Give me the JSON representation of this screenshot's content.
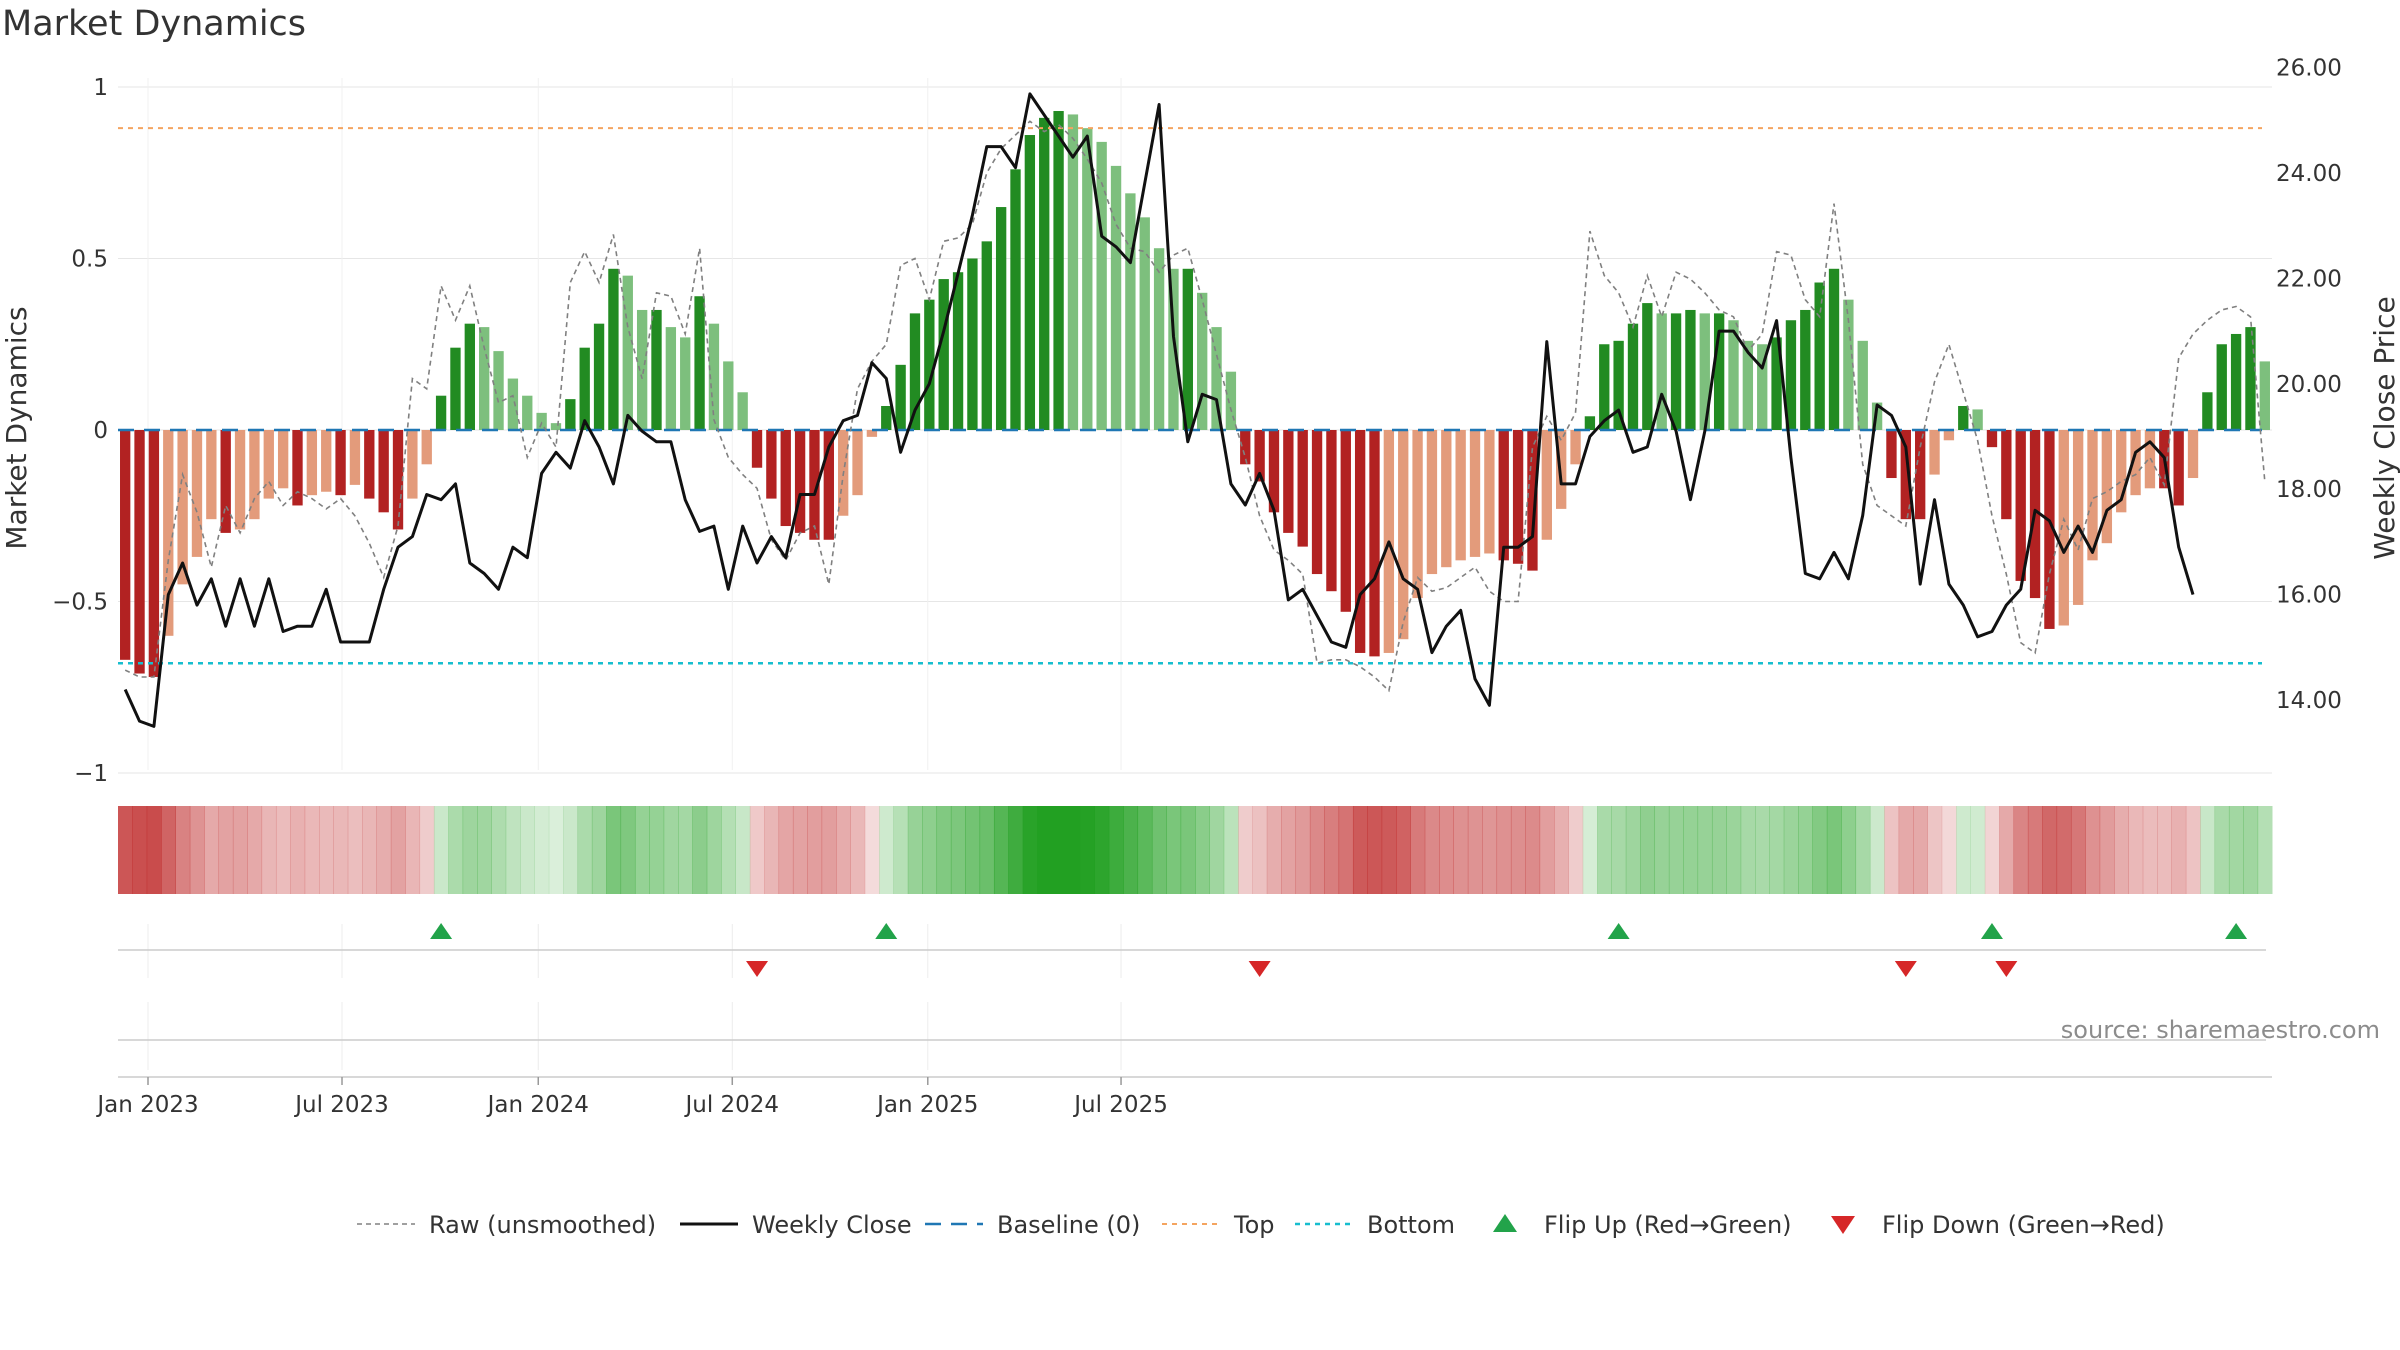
{
  "chart_data": {
    "type": "bar",
    "title": "Market Dynamics",
    "ylabel": "Market Dynamics",
    "y2label": "Weekly Close Price",
    "ylim": [
      -1,
      1
    ],
    "y2lim": [
      12.6,
      26.4
    ],
    "y_ticks": [
      1,
      0.5,
      0,
      -0.5,
      -1
    ],
    "y_tick_labels": [
      "1",
      "0.5",
      "0",
      "−0.5",
      "−1"
    ],
    "y2_ticks": [
      26,
      24,
      22,
      20,
      18,
      16,
      14
    ],
    "y2_tick_labels": [
      "26.00",
      "24.00",
      "22.00",
      "20.00",
      "18.00",
      "16.00",
      "14.00"
    ],
    "x_ticks": [
      {
        "label": "Jan 2023",
        "week": 0
      },
      {
        "label": "Jul 2023",
        "week": 26
      },
      {
        "label": "Jan 2024",
        "week": 52.3
      },
      {
        "label": "Jul 2024",
        "week": 78.3
      },
      {
        "label": "Jan 2025",
        "week": 104.5
      },
      {
        "label": "Jul 2025",
        "week": 130.4
      }
    ],
    "start_label": "Jan 2023",
    "bar_step_weeks": 0.72,
    "levels": {
      "top": 0.88,
      "bottom": -0.68,
      "baseline": 0
    },
    "grid": true,
    "legend_position": "bottom",
    "series": [
      {
        "name": "Market Dynamics",
        "kind": "bar",
        "values": [
          -0.67,
          -0.71,
          -0.72,
          -0.6,
          -0.45,
          -0.37,
          -0.26,
          -0.3,
          -0.29,
          -0.26,
          -0.2,
          -0.17,
          -0.22,
          -0.19,
          -0.18,
          -0.19,
          -0.16,
          -0.2,
          -0.24,
          -0.29,
          -0.2,
          -0.1,
          0.1,
          0.24,
          0.31,
          0.3,
          0.23,
          0.15,
          0.1,
          0.05,
          0.02,
          0.09,
          0.24,
          0.31,
          0.47,
          0.45,
          0.35,
          0.35,
          0.3,
          0.27,
          0.39,
          0.31,
          0.2,
          0.11,
          -0.11,
          -0.2,
          -0.28,
          -0.3,
          -0.32,
          -0.32,
          -0.25,
          -0.19,
          -0.02,
          0.07,
          0.19,
          0.34,
          0.38,
          0.44,
          0.46,
          0.5,
          0.55,
          0.65,
          0.76,
          0.86,
          0.91,
          0.93,
          0.92,
          0.88,
          0.84,
          0.77,
          0.69,
          0.62,
          0.53,
          0.47,
          0.47,
          0.4,
          0.3,
          0.17,
          -0.1,
          -0.15,
          -0.24,
          -0.3,
          -0.34,
          -0.42,
          -0.47,
          -0.53,
          -0.65,
          -0.66,
          -0.65,
          -0.61,
          -0.49,
          -0.42,
          -0.4,
          -0.38,
          -0.37,
          -0.36,
          -0.38,
          -0.39,
          -0.41,
          -0.32,
          -0.23,
          -0.1,
          0.04,
          0.25,
          0.26,
          0.31,
          0.37,
          0.34,
          0.34,
          0.35,
          0.34,
          0.34,
          0.32,
          0.26,
          0.25,
          0.27,
          0.32,
          0.35,
          0.43,
          0.47,
          0.38,
          0.26,
          0.08,
          -0.14,
          -0.26,
          -0.26,
          -0.13,
          -0.03,
          0.07,
          0.06,
          -0.05,
          -0.26,
          -0.44,
          -0.49,
          -0.58,
          -0.57,
          -0.51,
          -0.38,
          -0.33,
          -0.24,
          -0.19,
          -0.17,
          -0.17,
          -0.22,
          -0.14,
          0.11,
          0.25,
          0.28,
          0.3,
          0.2
        ],
        "colors": {
          "pos_rising": "#228b22",
          "pos_falling": "#7dbf7d",
          "neg_falling": "#b22222",
          "neg_rising": "#e39b7b"
        }
      },
      {
        "name": "Raw (unsmoothed)",
        "kind": "line",
        "color": "#808080",
        "values": [
          -0.7,
          -0.72,
          -0.72,
          -0.38,
          -0.13,
          -0.24,
          -0.4,
          -0.22,
          -0.3,
          -0.2,
          -0.15,
          -0.22,
          -0.18,
          -0.2,
          -0.23,
          -0.2,
          -0.25,
          -0.33,
          -0.43,
          -0.28,
          0.15,
          0.12,
          0.42,
          0.32,
          0.42,
          0.24,
          0.08,
          0.1,
          -0.08,
          0.02,
          -0.05,
          0.43,
          0.52,
          0.43,
          0.57,
          0.3,
          0.15,
          0.4,
          0.39,
          0.28,
          0.53,
          0.03,
          -0.08,
          -0.13,
          -0.17,
          -0.32,
          -0.38,
          -0.3,
          -0.28,
          -0.45,
          -0.13,
          0.12,
          0.2,
          0.25,
          0.48,
          0.5,
          0.38,
          0.55,
          0.56,
          0.6,
          0.75,
          0.82,
          0.86,
          0.9,
          0.87,
          0.89,
          0.85,
          0.79,
          0.72,
          0.6,
          0.53,
          0.52,
          0.46,
          0.51,
          0.53,
          0.38,
          0.22,
          0.06,
          -0.08,
          -0.25,
          -0.35,
          -0.38,
          -0.42,
          -0.68,
          -0.67,
          -0.67,
          -0.69,
          -0.72,
          -0.76,
          -0.56,
          -0.43,
          -0.47,
          -0.46,
          -0.43,
          -0.4,
          -0.47,
          -0.5,
          -0.5,
          -0.05,
          0.04,
          -0.03,
          0.05,
          0.58,
          0.45,
          0.4,
          0.3,
          0.45,
          0.33,
          0.46,
          0.44,
          0.4,
          0.35,
          0.33,
          0.23,
          0.28,
          0.52,
          0.51,
          0.38,
          0.33,
          0.66,
          0.32,
          -0.1,
          -0.22,
          -0.25,
          -0.28,
          -0.05,
          0.14,
          0.25,
          0.11,
          -0.03,
          -0.25,
          -0.42,
          -0.62,
          -0.65,
          -0.42,
          -0.26,
          -0.35,
          -0.2,
          -0.18,
          -0.15,
          -0.13,
          -0.08,
          -0.16,
          0.21,
          0.28,
          0.32,
          0.35,
          0.36,
          0.33,
          -0.15
        ]
      },
      {
        "name": "Weekly Close",
        "kind": "line",
        "color": "#111111",
        "axis": "right",
        "values": [
          14.2,
          13.6,
          13.5,
          16,
          16.6,
          15.8,
          16.3,
          15.4,
          16.3,
          15.4,
          16.3,
          15.3,
          15.4,
          15.4,
          16.1,
          15.1,
          15.1,
          15.1,
          16.1,
          16.9,
          17.1,
          17.9,
          17.8,
          18.1,
          16.6,
          16.4,
          16.1,
          16.9,
          16.7,
          18.3,
          18.7,
          18.4,
          19.3,
          18.8,
          18.1,
          19.4,
          19.1,
          18.9,
          18.9,
          17.8,
          17.2,
          17.3,
          16.1,
          17.3,
          16.6,
          17.1,
          16.7,
          17.9,
          17.9,
          18.8,
          19.3,
          19.4,
          20.4,
          20.1,
          18.7,
          19.5,
          20,
          21,
          22.1,
          23.2,
          24.5,
          24.5,
          24.1,
          25.5,
          25.1,
          24.7,
          24.3,
          24.7,
          22.8,
          22.6,
          22.3,
          23.8,
          25.3,
          20.9,
          18.9,
          19.8,
          19.7,
          18.1,
          17.7,
          18.3,
          17.6,
          15.9,
          16.1,
          15.6,
          15.1,
          15,
          16,
          16.3,
          17,
          16.3,
          16.1,
          14.9,
          15.4,
          15.7,
          14.4,
          13.9,
          16.9,
          16.9,
          17.1,
          20.8,
          18.1,
          18.1,
          19,
          19.3,
          19.5,
          18.7,
          18.8,
          19.8,
          19.1,
          17.8,
          19.1,
          21,
          21,
          20.6,
          20.3,
          21.2,
          18.6,
          16.4,
          16.3,
          16.8,
          16.3,
          17.5,
          19.6,
          19.4,
          18.8,
          16.2,
          17.8,
          16.2,
          15.8,
          15.2,
          15.3,
          15.8,
          16.1,
          17.6,
          17.4,
          16.8,
          17.3,
          16.8,
          17.6,
          17.8,
          18.7,
          18.9,
          18.6,
          16.9,
          16
        ]
      },
      {
        "name": "Baseline (0)",
        "kind": "hline",
        "color": "#1f77b4"
      },
      {
        "name": "Top",
        "kind": "hline",
        "color": "#f4a460"
      },
      {
        "name": "Bottom",
        "kind": "hline",
        "color": "#17becf"
      },
      {
        "name": "Flip Up (Red→Green)",
        "kind": "marker",
        "color": "#22a34a",
        "index": [
          22,
          53,
          104,
          130,
          147
        ]
      },
      {
        "name": "Flip Down (Green→Red)",
        "kind": "marker",
        "color": "#d62728",
        "index": [
          44,
          79,
          124,
          131
        ]
      }
    ],
    "source": "source: sharemaestro.com"
  }
}
